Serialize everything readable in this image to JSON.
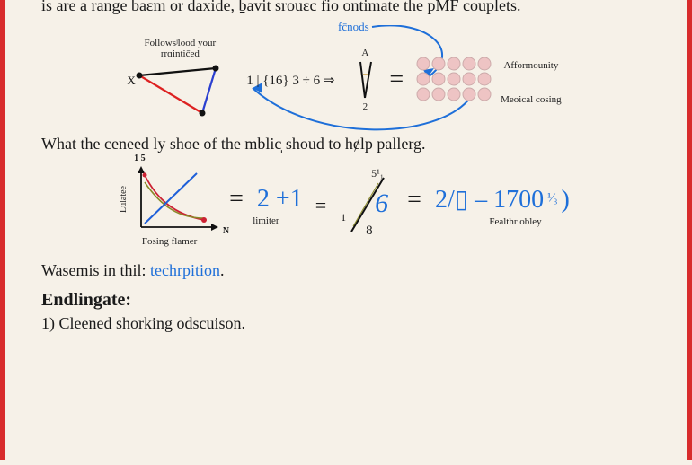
{
  "para1": "is are a range baɛm or daxide, ḇavit srouɛc fio ontimate the pMF couplets.",
  "diagram1": {
    "fcnods_label": "fc̄nods",
    "follow_label": "Followsʲlood your rrɑintic̄ed",
    "x_label": "X",
    "mid_math": "1 | {16} 3 ÷ 6 ⇒",
    "a_label": "A",
    "two_label": "2",
    "equals": "=",
    "afform_label": "Afformounity",
    "medical_label": "Meoical cosing",
    "triangle": {
      "p1": [
        10,
        18
      ],
      "p2": [
        95,
        10
      ],
      "p3": [
        80,
        60
      ],
      "colors": {
        "top": "#111",
        "right": "#2a3fd0",
        "left": "#d22"
      }
    },
    "arrow_color": "#1e6fd9",
    "grid": {
      "rows": 3,
      "cols": 5,
      "r": 7,
      "fill": "#eec4c4",
      "stroke": "#caa"
    }
  },
  "para2": "What the ceneed ly shoe of the mblic̩ shoud to hɇlp pallerg.",
  "diagram2": {
    "chart": {
      "ylabel": "Lulatee",
      "xlabel": "Fosing flamer",
      "y_top": "1 5",
      "n_label": "N",
      "curve1_color": "#c23",
      "curve2_color": "#8a8a2a",
      "line_color": "#1e5fd9",
      "axis_color": "#111"
    },
    "eq_part1": "= ",
    "eq_21": "2 +1",
    "limiter": "limiter",
    "eq_eq2": "=",
    "slash_top": "5¹₁",
    "six": "6",
    "eight": "8",
    "one_left": "1",
    "eq_part3": "= ",
    "eq_frac": "2/▯ – 1700",
    "eq_frac_sup": "¹⁄₃",
    "eq_close": ")",
    "fealthr": "Fealthr obley"
  },
  "para3_a": "Wasemis in thil: ",
  "para3_b": "techrpition",
  "para3_c": ".",
  "heading": "Endlingate:",
  "item1": "1)  Cleened shorking odscuison."
}
